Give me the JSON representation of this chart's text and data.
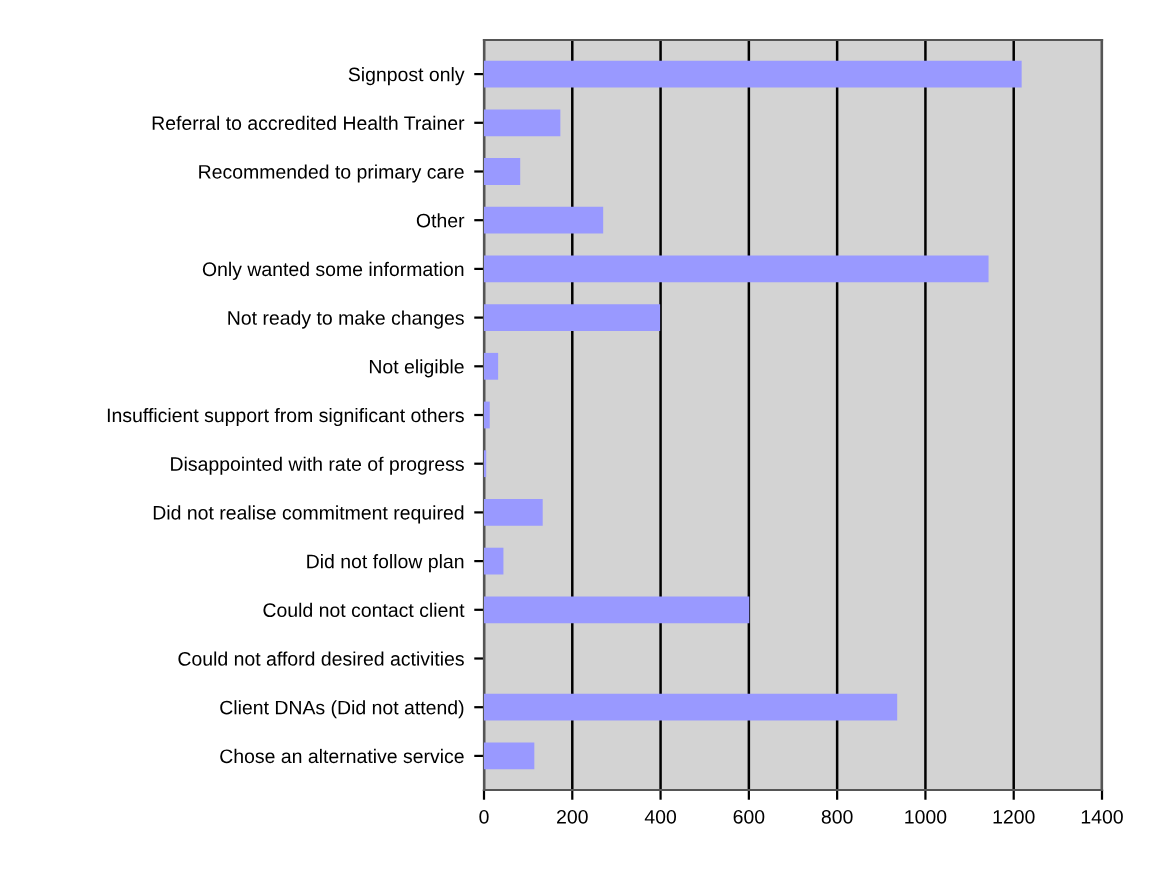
{
  "chart_data": {
    "type": "bar",
    "orientation": "horizontal",
    "categories": [
      "Signpost only",
      "Referral to accredited Health Trainer",
      "Recommended to primary care",
      "Other",
      "Only wanted some information",
      "Not ready to make changes",
      "Not eligible",
      "Insufficient support from significant others",
      "Disappointed with rate of progress",
      "Did not realise commitment required",
      "Did not follow plan",
      "Could not contact client",
      "Could not afford desired activities",
      "Client DNAs (Did not attend)",
      "Chose an alternative service"
    ],
    "values": [
      1218,
      173,
      82,
      270,
      1143,
      399,
      32,
      13,
      5,
      133,
      44,
      601,
      0,
      936,
      114
    ],
    "color": "#9999ff",
    "xlim": [
      0,
      1400
    ],
    "xticks": [
      0,
      200,
      400,
      600,
      800,
      1000,
      1200,
      1400
    ],
    "grid": "x",
    "legend": false
  }
}
